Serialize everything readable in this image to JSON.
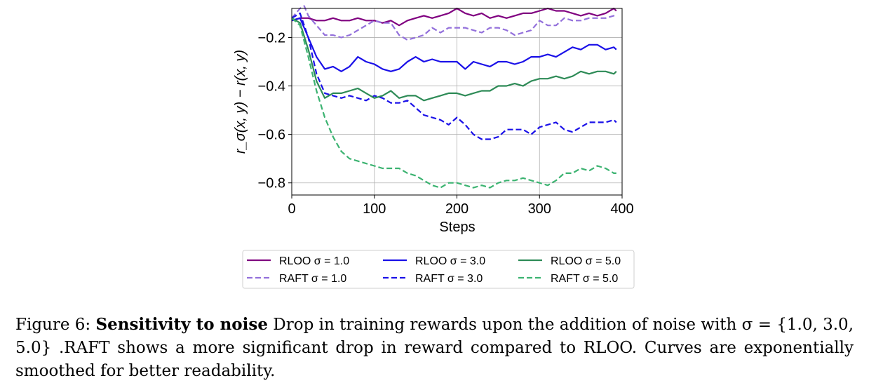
{
  "chart_data": {
    "type": "line",
    "xlabel": "Steps",
    "ylabel": "r_σ(x, y) − r(x, y)",
    "xlim": [
      0,
      400
    ],
    "ylim": [
      -0.85,
      -0.08
    ],
    "xticks": [
      0,
      100,
      200,
      300,
      400
    ],
    "xtick_labels": [
      "0",
      "100",
      "200",
      "300",
      "400"
    ],
    "yticks": [
      -0.8,
      -0.6,
      -0.4,
      -0.2
    ],
    "ytick_labels": [
      "−0.8",
      "−0.6",
      "−0.4",
      "−0.2"
    ],
    "grid": true,
    "legend_position": "bottom-center",
    "series": [
      {
        "name": "RLOO σ = 1.0",
        "color": "#800080",
        "dash": "solid",
        "x": [
          0,
          10,
          20,
          30,
          40,
          50,
          60,
          70,
          80,
          90,
          100,
          110,
          120,
          130,
          140,
          150,
          160,
          170,
          180,
          190,
          200,
          210,
          220,
          230,
          240,
          250,
          260,
          270,
          280,
          290,
          300,
          310,
          320,
          330,
          340,
          350,
          360,
          370,
          380,
          390,
          393
        ],
        "y": [
          -0.13,
          -0.12,
          -0.12,
          -0.13,
          -0.13,
          -0.12,
          -0.13,
          -0.13,
          -0.12,
          -0.13,
          -0.13,
          -0.14,
          -0.13,
          -0.15,
          -0.13,
          -0.12,
          -0.11,
          -0.12,
          -0.11,
          -0.1,
          -0.08,
          -0.1,
          -0.11,
          -0.1,
          -0.12,
          -0.11,
          -0.12,
          -0.11,
          -0.1,
          -0.1,
          -0.09,
          -0.08,
          -0.09,
          -0.09,
          -0.1,
          -0.11,
          -0.1,
          -0.11,
          -0.1,
          -0.08,
          -0.09
        ]
      },
      {
        "name": "RAFT σ = 1.0",
        "color": "#9370db",
        "dash": "dashed",
        "x": [
          0,
          10,
          15,
          20,
          30,
          40,
          50,
          60,
          70,
          80,
          90,
          100,
          110,
          120,
          130,
          140,
          150,
          160,
          170,
          180,
          190,
          200,
          210,
          220,
          230,
          240,
          250,
          260,
          270,
          280,
          290,
          300,
          310,
          320,
          330,
          340,
          350,
          360,
          370,
          380,
          390,
          393
        ],
        "y": [
          -0.12,
          -0.08,
          -0.07,
          -0.11,
          -0.15,
          -0.19,
          -0.19,
          -0.2,
          -0.19,
          -0.17,
          -0.15,
          -0.13,
          -0.14,
          -0.14,
          -0.19,
          -0.21,
          -0.2,
          -0.19,
          -0.16,
          -0.18,
          -0.16,
          -0.16,
          -0.16,
          -0.17,
          -0.18,
          -0.16,
          -0.16,
          -0.17,
          -0.19,
          -0.18,
          -0.17,
          -0.13,
          -0.15,
          -0.15,
          -0.12,
          -0.13,
          -0.13,
          -0.12,
          -0.12,
          -0.12,
          -0.11,
          -0.11
        ]
      },
      {
        "name": "RLOO σ = 3.0",
        "color": "#1a10e8",
        "dash": "solid",
        "x": [
          0,
          10,
          20,
          30,
          40,
          50,
          60,
          70,
          80,
          90,
          100,
          110,
          120,
          130,
          140,
          150,
          160,
          170,
          180,
          190,
          200,
          210,
          220,
          230,
          240,
          250,
          260,
          270,
          280,
          290,
          300,
          310,
          320,
          330,
          340,
          350,
          360,
          370,
          380,
          390,
          393
        ],
        "y": [
          -0.13,
          -0.12,
          -0.2,
          -0.28,
          -0.33,
          -0.32,
          -0.34,
          -0.32,
          -0.28,
          -0.3,
          -0.31,
          -0.33,
          -0.34,
          -0.33,
          -0.3,
          -0.28,
          -0.3,
          -0.29,
          -0.3,
          -0.3,
          -0.3,
          -0.33,
          -0.3,
          -0.31,
          -0.32,
          -0.3,
          -0.3,
          -0.31,
          -0.3,
          -0.28,
          -0.28,
          -0.27,
          -0.28,
          -0.26,
          -0.24,
          -0.25,
          -0.23,
          -0.23,
          -0.25,
          -0.24,
          -0.25
        ]
      },
      {
        "name": "RAFT σ = 3.0",
        "color": "#1a10e8",
        "dash": "dashed",
        "x": [
          0,
          10,
          20,
          30,
          40,
          50,
          60,
          70,
          80,
          90,
          100,
          110,
          120,
          130,
          140,
          150,
          160,
          170,
          180,
          190,
          200,
          210,
          220,
          230,
          240,
          250,
          260,
          270,
          280,
          290,
          300,
          310,
          320,
          330,
          340,
          350,
          360,
          370,
          380,
          390,
          393
        ],
        "y": [
          -0.12,
          -0.1,
          -0.2,
          -0.35,
          -0.43,
          -0.44,
          -0.45,
          -0.44,
          -0.45,
          -0.46,
          -0.44,
          -0.45,
          -0.47,
          -0.47,
          -0.46,
          -0.49,
          -0.52,
          -0.53,
          -0.54,
          -0.56,
          -0.53,
          -0.56,
          -0.6,
          -0.62,
          -0.62,
          -0.61,
          -0.58,
          -0.58,
          -0.58,
          -0.6,
          -0.57,
          -0.56,
          -0.55,
          -0.58,
          -0.59,
          -0.57,
          -0.55,
          -0.55,
          -0.55,
          -0.54,
          -0.55
        ]
      },
      {
        "name": "RLOO σ = 5.0",
        "color": "#2e8b57",
        "dash": "solid",
        "x": [
          0,
          10,
          20,
          30,
          40,
          50,
          60,
          70,
          80,
          90,
          100,
          110,
          120,
          130,
          140,
          150,
          160,
          170,
          180,
          190,
          200,
          210,
          220,
          230,
          240,
          250,
          260,
          270,
          280,
          290,
          300,
          310,
          320,
          330,
          340,
          350,
          360,
          370,
          380,
          390,
          393
        ],
        "y": [
          -0.12,
          -0.14,
          -0.25,
          -0.38,
          -0.45,
          -0.43,
          -0.43,
          -0.42,
          -0.41,
          -0.43,
          -0.45,
          -0.44,
          -0.42,
          -0.45,
          -0.44,
          -0.44,
          -0.46,
          -0.45,
          -0.44,
          -0.43,
          -0.43,
          -0.44,
          -0.43,
          -0.42,
          -0.42,
          -0.4,
          -0.4,
          -0.39,
          -0.4,
          -0.38,
          -0.37,
          -0.37,
          -0.36,
          -0.37,
          -0.36,
          -0.34,
          -0.35,
          -0.34,
          -0.34,
          -0.35,
          -0.34
        ]
      },
      {
        "name": "RAFT σ = 5.0",
        "color": "#3cb371",
        "dash": "dashed",
        "x": [
          0,
          10,
          20,
          30,
          40,
          50,
          60,
          70,
          80,
          90,
          100,
          110,
          120,
          130,
          140,
          150,
          160,
          170,
          180,
          190,
          200,
          210,
          220,
          230,
          240,
          250,
          260,
          270,
          280,
          290,
          300,
          310,
          320,
          330,
          340,
          350,
          360,
          370,
          380,
          390,
          393
        ],
        "y": [
          -0.12,
          -0.15,
          -0.28,
          -0.42,
          -0.53,
          -0.61,
          -0.67,
          -0.7,
          -0.71,
          -0.72,
          -0.73,
          -0.74,
          -0.74,
          -0.74,
          -0.76,
          -0.77,
          -0.79,
          -0.81,
          -0.82,
          -0.8,
          -0.8,
          -0.81,
          -0.82,
          -0.81,
          -0.82,
          -0.8,
          -0.79,
          -0.79,
          -0.78,
          -0.79,
          -0.8,
          -0.81,
          -0.79,
          -0.76,
          -0.76,
          -0.74,
          -0.75,
          -0.73,
          -0.74,
          -0.76,
          -0.76
        ]
      }
    ]
  },
  "caption": {
    "label": "Figure 6:",
    "bold": "Sensitivity to noise",
    "text": " Drop in training rewards upon the addition of noise with σ = {1.0, 3.0, 5.0} .RAFT shows a more significant drop in reward compared to RLOO. Curves are exponentially smoothed for better readability."
  }
}
